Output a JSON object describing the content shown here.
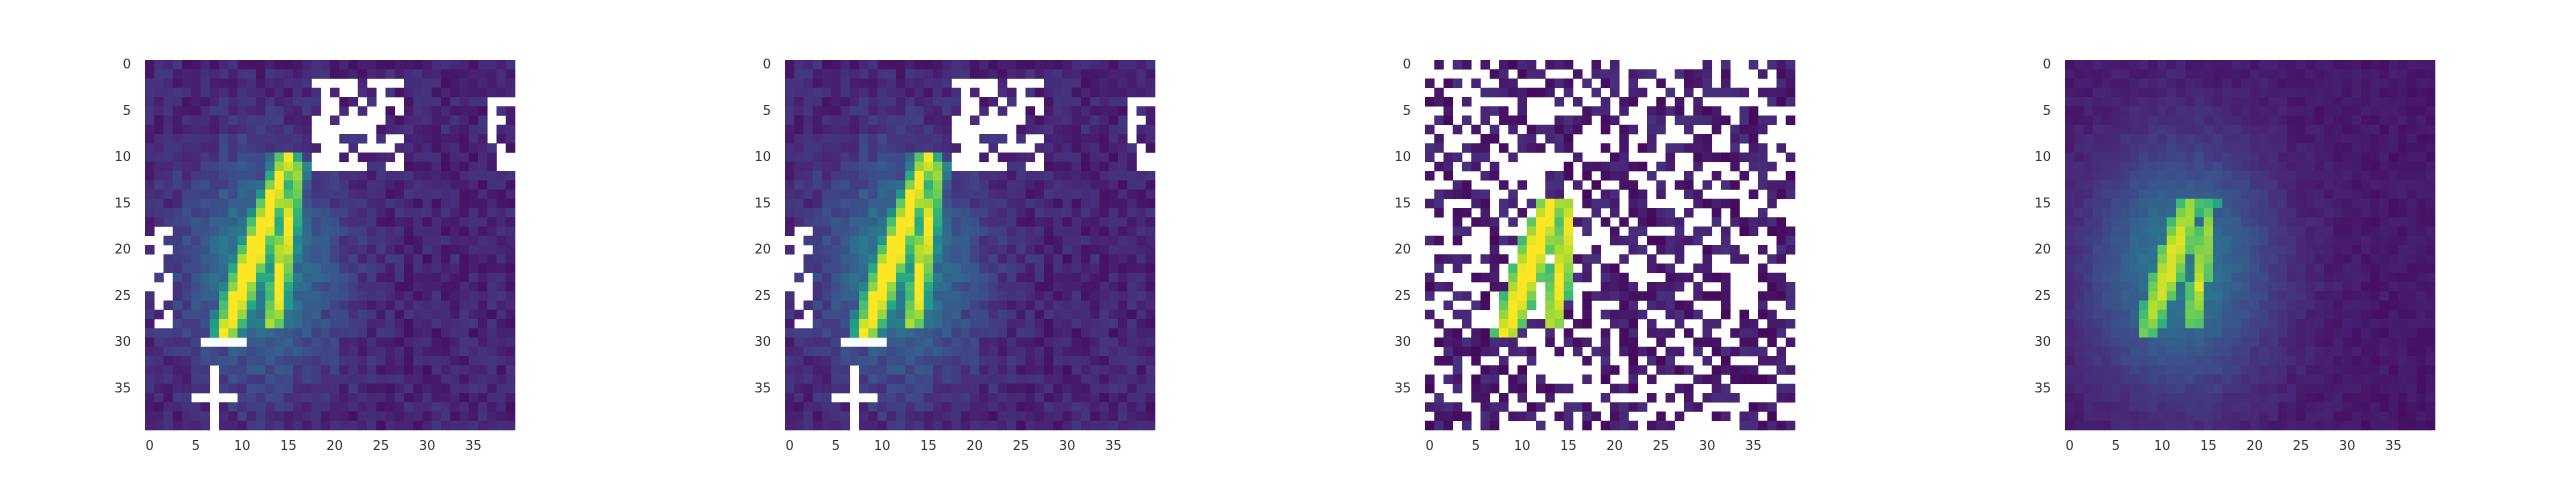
{
  "colors": {
    "background": "#ffffff",
    "tick_text": "#333333",
    "colormap": "viridis",
    "masked": "#ffffff"
  },
  "chart_data": [
    {
      "type": "heatmap",
      "grid": false,
      "title": "",
      "xlabel": "",
      "ylabel": "",
      "xlim": [
        0,
        39
      ],
      "ylim": [
        39,
        0
      ],
      "xticks": [
        "0",
        "5",
        "10",
        "15",
        "20",
        "25",
        "30",
        "35"
      ],
      "yticks": [
        "0",
        "5",
        "10",
        "15",
        "20",
        "25",
        "30",
        "35"
      ],
      "pattern": "raw"
    },
    {
      "type": "heatmap",
      "grid": false,
      "title": "",
      "xlabel": "",
      "ylabel": "",
      "xlim": [
        0,
        39
      ],
      "ylim": [
        39,
        0
      ],
      "xticks": [
        "0",
        "5",
        "10",
        "15",
        "20",
        "25",
        "30",
        "35"
      ],
      "yticks": [
        "0",
        "5",
        "10",
        "15",
        "20",
        "25",
        "30",
        "35"
      ],
      "pattern": "raw"
    },
    {
      "type": "heatmap",
      "grid": false,
      "title": "",
      "xlabel": "",
      "ylabel": "",
      "xlim": [
        0,
        39
      ],
      "ylim": [
        39,
        0
      ],
      "xticks": [
        "0",
        "5",
        "10",
        "15",
        "20",
        "25",
        "30",
        "35"
      ],
      "yticks": [
        "0",
        "5",
        "10",
        "15",
        "20",
        "25",
        "30",
        "35"
      ],
      "pattern": "sparse"
    },
    {
      "type": "heatmap",
      "grid": false,
      "title": "",
      "xlabel": "",
      "ylabel": "",
      "xlim": [
        0,
        39
      ],
      "ylim": [
        39,
        0
      ],
      "xticks": [
        "0",
        "5",
        "10",
        "15",
        "20",
        "25",
        "30",
        "35"
      ],
      "yticks": [
        "0",
        "5",
        "10",
        "15",
        "20",
        "25",
        "30",
        "35"
      ],
      "pattern": "smooth"
    }
  ]
}
